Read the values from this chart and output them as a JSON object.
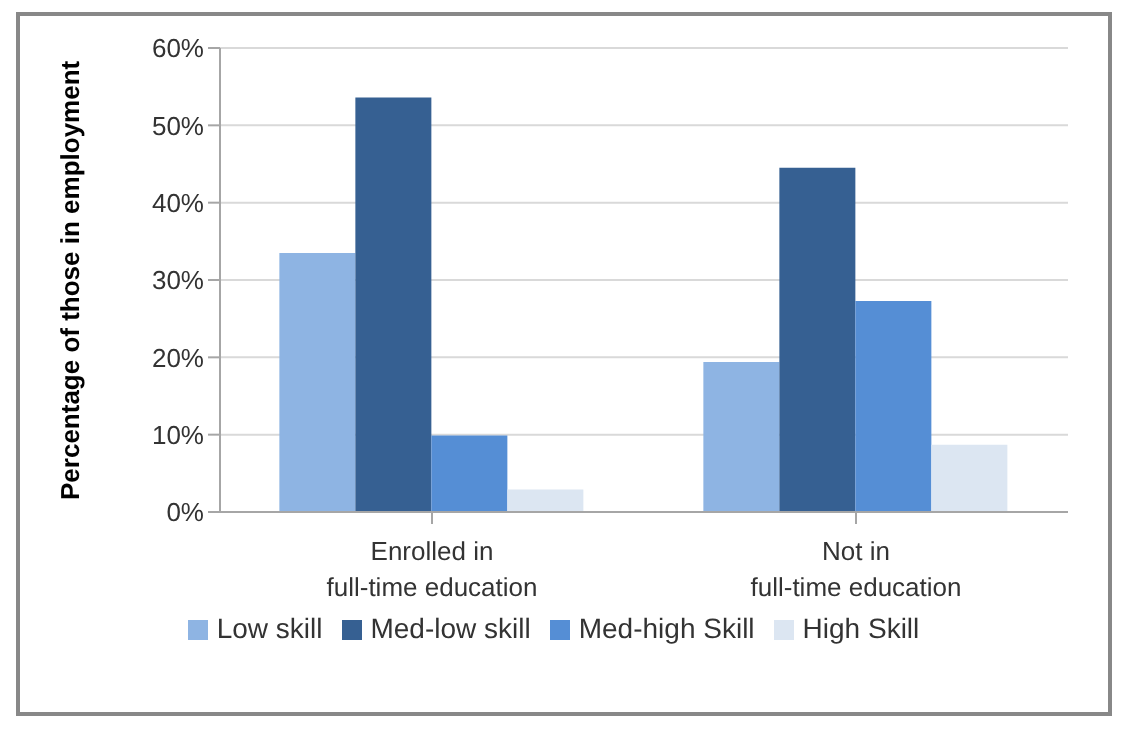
{
  "chart_data": {
    "type": "bar",
    "ylabel": "Percentage of those in employment",
    "categories": [
      "Enrolled in\nfull-time education",
      "Not in\nfull-time education"
    ],
    "series": [
      {
        "name": "Low skill",
        "color": "#8eb4e3",
        "values": [
          33.5,
          19.4
        ]
      },
      {
        "name": "Med-low skill",
        "color": "#366092",
        "values": [
          53.6,
          44.5
        ]
      },
      {
        "name": "Med-high Skill",
        "color": "#558ed5",
        "values": [
          9.9,
          27.3
        ]
      },
      {
        "name": "High Skill",
        "color": "#dce6f2",
        "values": [
          2.9,
          8.7
        ]
      }
    ],
    "ylim": [
      0,
      60
    ],
    "yticks": [
      {
        "value": 0,
        "label": "0%"
      },
      {
        "value": 10,
        "label": "10%"
      },
      {
        "value": 20,
        "label": "20%"
      },
      {
        "value": 30,
        "label": "30%"
      },
      {
        "value": 40,
        "label": "40%"
      },
      {
        "value": 50,
        "label": "50%"
      },
      {
        "value": 60,
        "label": "60%"
      }
    ],
    "grid": "y",
    "legend": "bottom"
  }
}
